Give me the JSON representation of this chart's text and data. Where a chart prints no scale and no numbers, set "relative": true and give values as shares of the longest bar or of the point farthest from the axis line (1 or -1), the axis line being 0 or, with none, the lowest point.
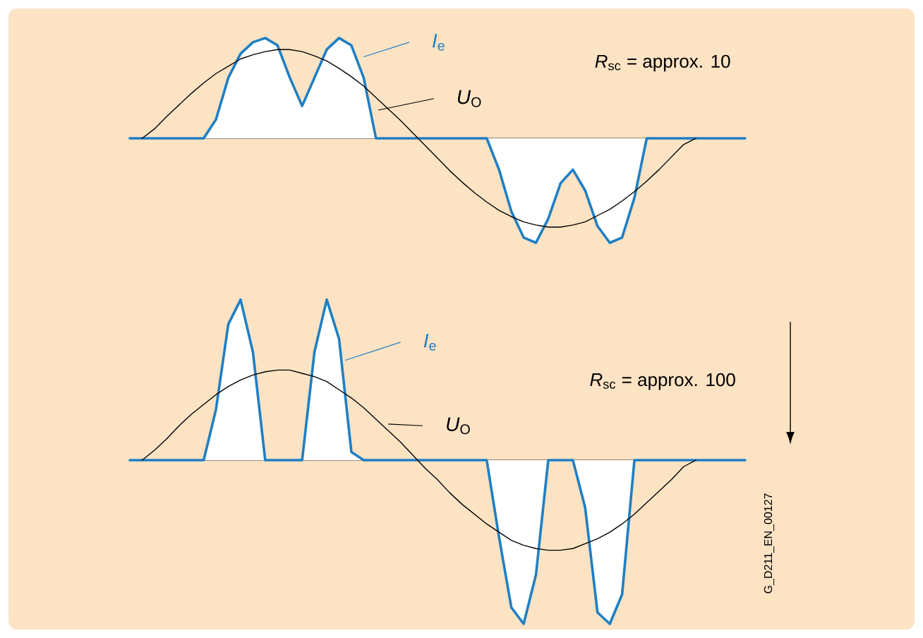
{
  "chart_data": [
    {
      "type": "line",
      "relative": true,
      "legend": "top",
      "categories": [
        null,
        null,
        null,
        null,
        null,
        null,
        null,
        null,
        null,
        null,
        null,
        null,
        null,
        null,
        null,
        null,
        null,
        null,
        null,
        null,
        null,
        null,
        null,
        null,
        null,
        null,
        null,
        null,
        null,
        null,
        null,
        null,
        null,
        null,
        null,
        null,
        null,
        null,
        null,
        null,
        null,
        null,
        null,
        null,
        null,
        null,
        null,
        null,
        null,
        null,
        null
      ],
      "series": [
        {
          "name": "*I*$_{e}$",
          "type": "area",
          "color": "#1f7fc4",
          "values": [
            0,
            0,
            0,
            0,
            0,
            0,
            0,
            0.18,
            0.58,
            0.81,
            0.92,
            0.96,
            0.89,
            0.58,
            0.31,
            0.58,
            0.85,
            0.96,
            0.89,
            0.58,
            0,
            0,
            0,
            0,
            0,
            0,
            0,
            0,
            0,
            0,
            -0.3,
            -0.7,
            -0.95,
            -1,
            -0.77,
            -0.43,
            -0.3,
            -0.5,
            -0.84,
            -1,
            -0.95,
            -0.57,
            0,
            0,
            0,
            0,
            0,
            0,
            0,
            0,
            0
          ]
        },
        {
          "name": "*U*$_{O}$",
          "type": "line",
          "color": "#000000",
          "values": [
            null,
            0,
            0.09,
            0.21,
            0.32,
            0.43,
            0.53,
            0.62,
            0.69,
            0.76,
            0.8,
            0.83,
            0.85,
            0.85,
            0.83,
            0.79,
            0.74,
            0.67,
            0.59,
            0.5,
            0.39,
            0.28,
            0.17,
            0.05,
            -0.07,
            -0.19,
            -0.31,
            -0.42,
            -0.52,
            -0.61,
            -0.69,
            -0.75,
            -0.8,
            -0.83,
            -0.85,
            -0.85,
            -0.83,
            -0.8,
            -0.74,
            -0.68,
            -0.6,
            -0.51,
            -0.41,
            -0.3,
            -0.18,
            -0.06,
            0,
            null,
            null,
            null,
            null
          ]
        }
      ],
      "annotations": [
        "*R*$_{sc}$ = approx. 10"
      ]
    },
    {
      "type": "line",
      "relative": true,
      "legend": "top",
      "categories": [
        null,
        null,
        null,
        null,
        null,
        null,
        null,
        null,
        null,
        null,
        null,
        null,
        null,
        null,
        null,
        null,
        null,
        null,
        null,
        null,
        null,
        null,
        null,
        null,
        null,
        null,
        null,
        null,
        null,
        null,
        null,
        null,
        null,
        null,
        null,
        null,
        null,
        null,
        null,
        null,
        null,
        null,
        null,
        null,
        null,
        null,
        null,
        null,
        null,
        null,
        null
      ],
      "series": [
        {
          "name": "*I*$_{e}$",
          "type": "area",
          "color": "#1f7fc4",
          "values": [
            0,
            0,
            0,
            0,
            0,
            0,
            0,
            0.31,
            0.83,
            0.98,
            0.66,
            0,
            0,
            0,
            0,
            0.66,
            0.98,
            0.74,
            0.05,
            0,
            0,
            0,
            0,
            0,
            0,
            0,
            0,
            0,
            0,
            0,
            -0.47,
            -0.9,
            -1,
            -0.7,
            0,
            0,
            0,
            -0.29,
            -0.93,
            -1,
            -0.82,
            0,
            0,
            0,
            0,
            0,
            0,
            0,
            0,
            0,
            0
          ]
        },
        {
          "name": "*U*$_{O}$",
          "type": "line",
          "color": "#000000",
          "values": [
            null,
            0,
            0.06,
            0.13,
            0.21,
            0.28,
            0.34,
            0.4,
            0.45,
            0.49,
            0.52,
            0.54,
            0.55,
            0.55,
            0.53,
            0.51,
            0.48,
            0.43,
            0.38,
            0.32,
            0.25,
            0.18,
            0.11,
            0.03,
            -0.05,
            -0.12,
            -0.2,
            -0.27,
            -0.33,
            -0.39,
            -0.44,
            -0.49,
            -0.52,
            -0.54,
            -0.55,
            -0.55,
            -0.54,
            -0.51,
            -0.48,
            -0.44,
            -0.39,
            -0.33,
            -0.26,
            -0.19,
            -0.12,
            -0.04,
            0,
            null,
            null,
            null,
            null
          ]
        }
      ],
      "annotations": [
        "*R*$_{sc}$ = approx. 100",
        "G_D211_EN_00127"
      ]
    }
  ]
}
